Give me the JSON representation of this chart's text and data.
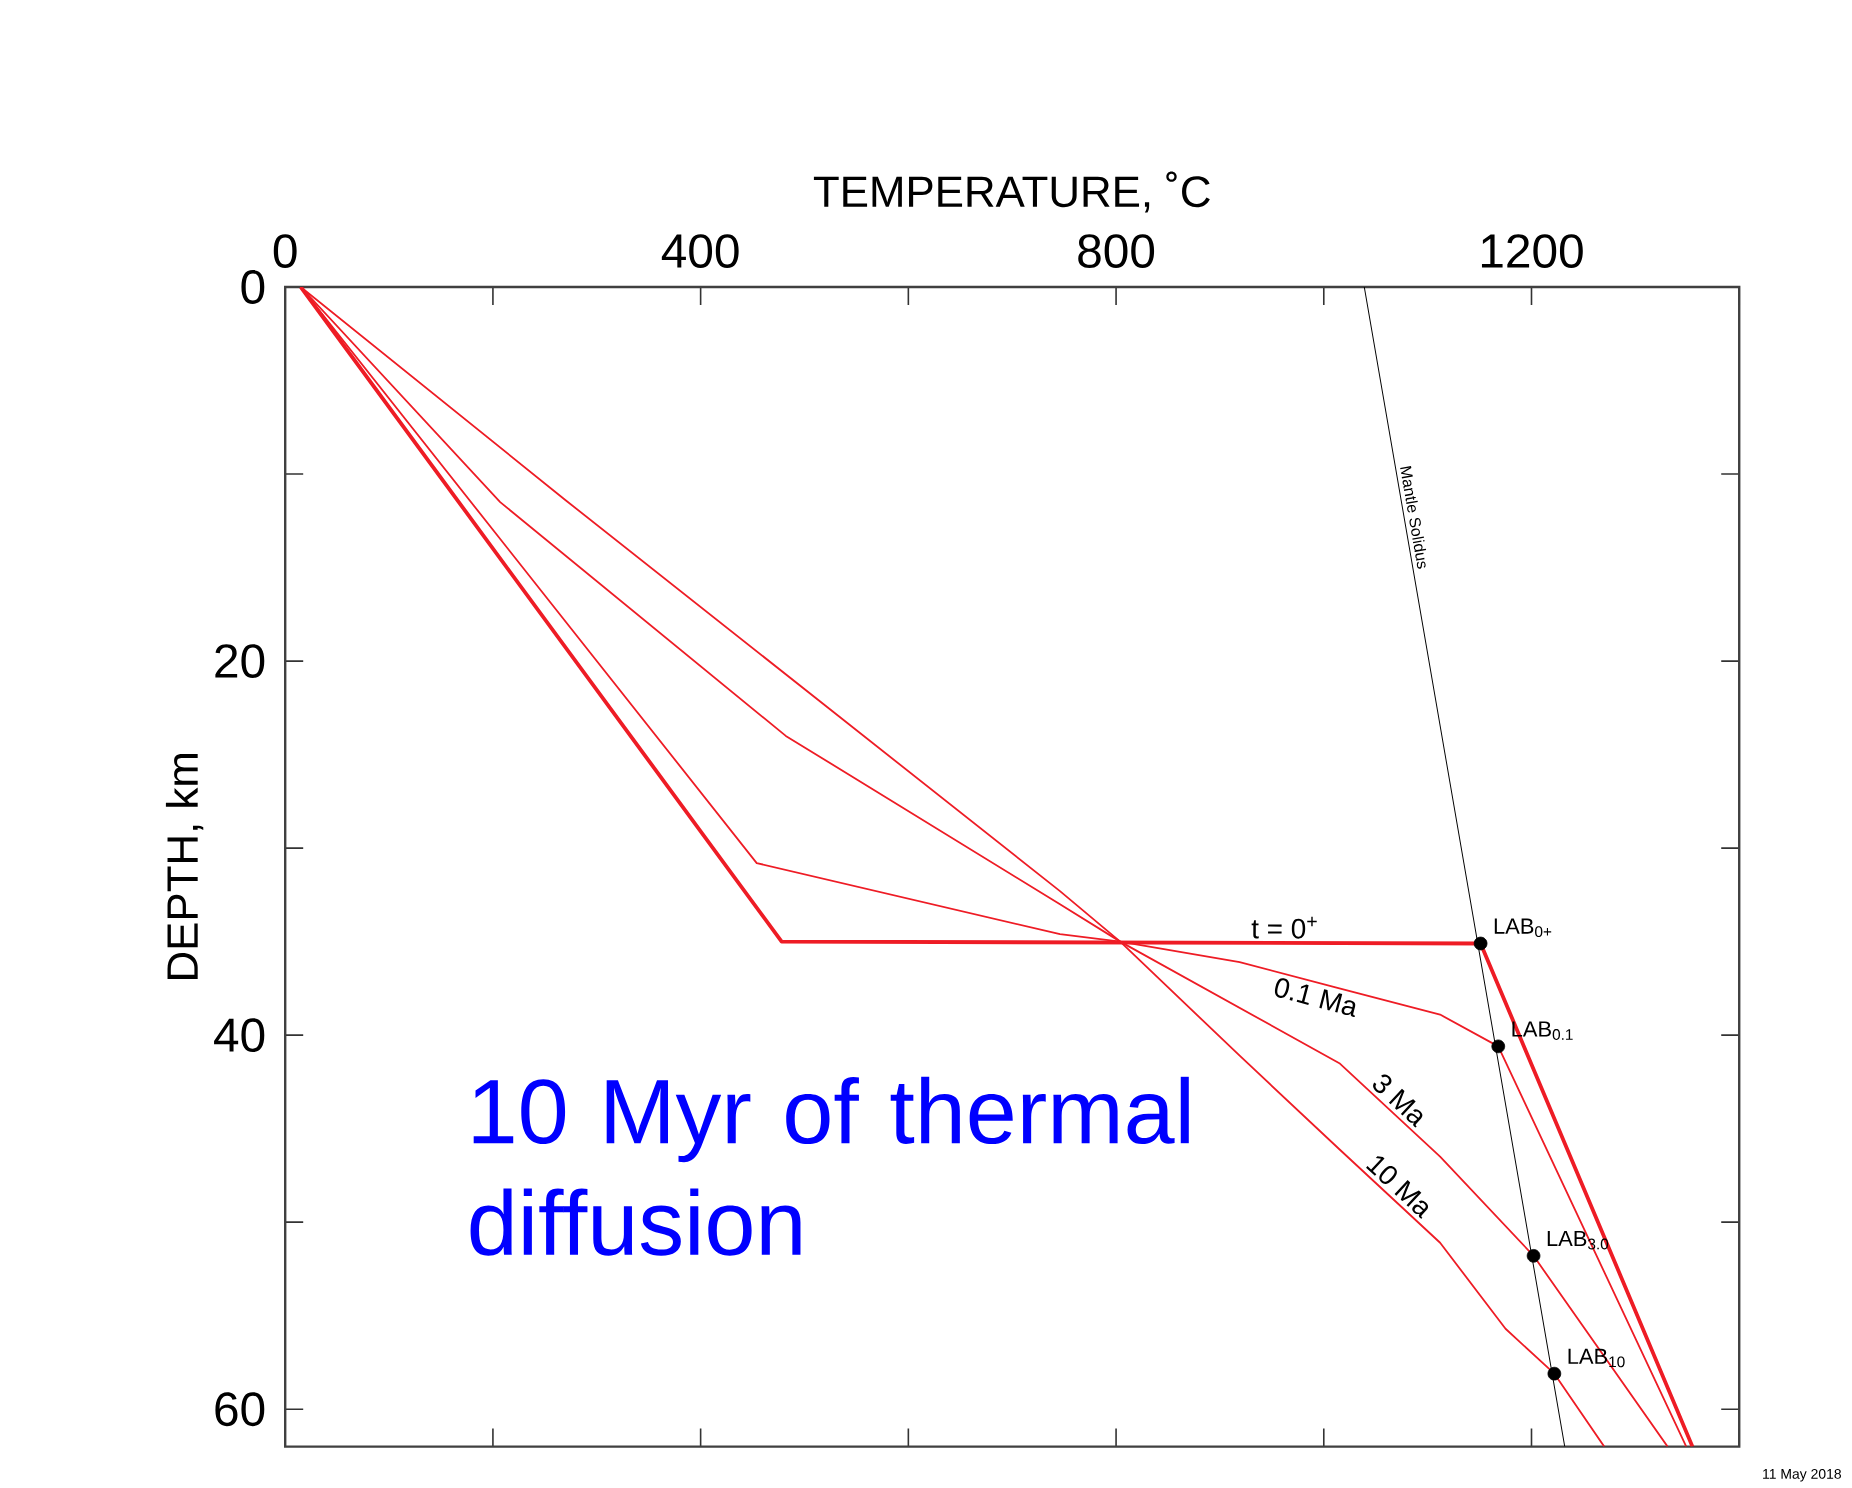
{
  "chart_data": {
    "type": "line",
    "xlabel": "TEMPERATURE, ˚C",
    "ylabel": "DEPTH, km",
    "xlim": [
      0,
      1400
    ],
    "ylim": [
      62,
      0
    ],
    "xticks": [
      0,
      {
        "value": 200,
        "label": null
      },
      400,
      {
        "value": 600,
        "label": null
      },
      800,
      {
        "value": 1000,
        "label": null
      },
      1200,
      {
        "value": 1400,
        "label": null
      }
    ],
    "yticks": [
      0,
      {
        "value": 10,
        "label": null
      },
      20,
      {
        "value": 30,
        "label": null
      },
      40,
      {
        "value": 50,
        "label": null
      },
      60
    ],
    "series": [
      {
        "name": "t = 0$^{+}$",
        "color": "#ee1c25",
        "x": [
          15,
          478,
          1151,
          1355
        ],
        "values": [
          0,
          35,
          35.1,
          62
        ]
      },
      {
        "name": "0.1 Ma",
        "color": "#ee1c25",
        "x": [
          15,
          454,
          746,
          804,
          919,
          1015,
          1112,
          1168,
          1349
        ],
        "values": [
          0,
          30.8,
          34.6,
          35.0,
          36.1,
          37.5,
          38.9,
          40.6,
          62
        ]
      },
      {
        "name": "3 Ma",
        "color": "#ee1c25",
        "x": [
          15,
          207,
          482,
          746,
          804,
          1015,
          1112,
          1202,
          1331
        ],
        "values": [
          0,
          11.5,
          24.0,
          33.0,
          35.0,
          41.5,
          46.5,
          51.8,
          62
        ]
      },
      {
        "name": "10 Ma",
        "color": "#ee1c25",
        "x": [
          15,
          270,
          746,
          804,
          919,
          1015,
          1112,
          1175,
          1222,
          1270
        ],
        "values": [
          0,
          11.4,
          32.3,
          35.0,
          41.1,
          46.1,
          51.1,
          55.7,
          58.1,
          62
        ]
      },
      {
        "name": "Mantle Solidus",
        "color": "#000000",
        "x": [
          1039,
          1232
        ],
        "values": [
          0,
          62
        ]
      },
      {
        "type": "scatter",
        "color": "#000000",
        "x": [
          1151,
          1168,
          1202,
          1222
        ],
        "values": [
          35.1,
          40.6,
          51.8,
          58.1
        ]
      }
    ],
    "annotations": [
      {
        "text": "LAB$_{0+}$",
        "x": 1151,
        "y": 35.1
      },
      {
        "text": "LAB$_{0.1}$",
        "x": 1168,
        "y": 40.6
      },
      {
        "text": "LAB$_{3.0}$",
        "x": 1202,
        "y": 51.8
      },
      {
        "text": "LAB$_{10}$",
        "x": 1222,
        "y": 58.1
      },
      "10 Myr of thermal diffusion",
      "11 May 2018"
    ]
  }
}
